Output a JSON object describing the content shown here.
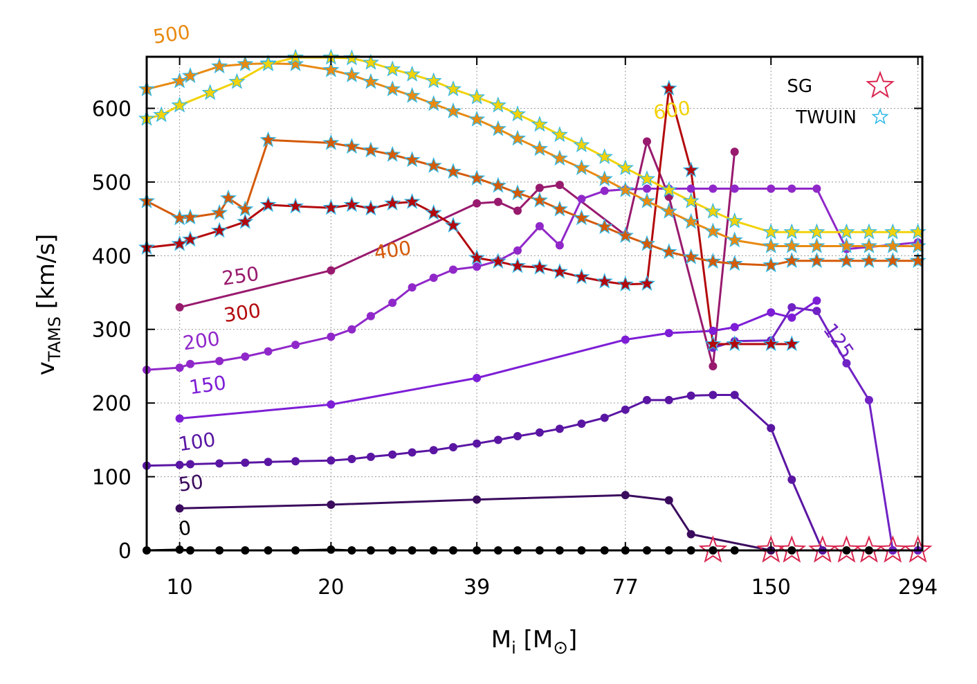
{
  "chart_data": {
    "type": "line",
    "xlabel_main": "M",
    "xlabel_sub": "i",
    "xlabel_bracket_open": " [M",
    "xlabel_sun": "⊙",
    "xlabel_bracket_close": "]",
    "ylabel_main": "v",
    "ylabel_sub": "TAMS",
    "ylabel_units": " [km/s]",
    "xscale": "log",
    "xlim": [
      8.6,
      300
    ],
    "ylim": [
      0,
      670
    ],
    "grid": true,
    "x_ticks": [
      {
        "value": 10,
        "label": "10"
      },
      {
        "value": 20,
        "label": "20"
      },
      {
        "value": 39,
        "label": "39"
      },
      {
        "value": 77,
        "label": "77"
      },
      {
        "value": 150,
        "label": "150"
      },
      {
        "value": 294,
        "label": "294"
      }
    ],
    "y_ticks": [
      {
        "value": 0,
        "label": "0"
      },
      {
        "value": 100,
        "label": "100"
      },
      {
        "value": 200,
        "label": "200"
      },
      {
        "value": 300,
        "label": "300"
      },
      {
        "value": 400,
        "label": "400"
      },
      {
        "value": 500,
        "label": "500"
      },
      {
        "value": 600,
        "label": "600"
      }
    ],
    "legend": {
      "position": "top-right",
      "entries": [
        {
          "label": "SG",
          "marker": "open-star",
          "color": "#d9264f"
        },
        {
          "label": "TWUIN",
          "marker": "small-open-star",
          "color": "#2fb8e8"
        }
      ]
    },
    "series": [
      {
        "name": "0",
        "color": "#000000",
        "x": [
          8.6,
          10,
          10.5,
          12,
          13.5,
          15,
          17,
          20,
          22,
          24,
          26.5,
          29,
          32,
          35,
          39,
          43,
          47,
          52,
          57,
          63,
          70,
          77,
          85,
          94,
          104,
          115,
          127,
          150,
          165,
          190,
          212,
          235,
          262,
          294
        ],
        "y": [
          0,
          1,
          0,
          0,
          0,
          0,
          0,
          1,
          0,
          0,
          0,
          0,
          0,
          0,
          0,
          0,
          0,
          0,
          0,
          0,
          0,
          0,
          0,
          0,
          0,
          0,
          0,
          0,
          0,
          0,
          0,
          0,
          0,
          0
        ],
        "label_at": [
          10,
          20
        ]
      },
      {
        "name": "50",
        "color": "#3b0c5e",
        "x": [
          10,
          20,
          39,
          77,
          94,
          104,
          150
        ],
        "y": [
          57,
          62,
          69,
          75,
          68,
          22,
          0
        ],
        "label_at": [
          10,
          80
        ]
      },
      {
        "name": "100",
        "color": "#5a16a3",
        "x": [
          8.6,
          10,
          10.5,
          12,
          13.5,
          15,
          17,
          20,
          22,
          24,
          26.5,
          29,
          32,
          35,
          39,
          43,
          47,
          52,
          57,
          63,
          70,
          77,
          85,
          94,
          104,
          115,
          127,
          150,
          165,
          190
        ],
        "y": [
          115,
          116,
          117,
          118,
          119,
          120,
          121,
          122,
          124,
          127,
          130,
          133,
          136,
          140,
          145,
          150,
          155,
          160,
          165,
          172,
          180,
          191,
          204,
          204,
          210,
          211,
          211,
          166,
          96,
          0
        ],
        "label_at": [
          10,
          135
        ]
      },
      {
        "name": "150",
        "color": "#7d1ed6",
        "x": [
          10,
          20,
          39,
          77,
          94,
          115,
          127,
          150,
          165,
          185
        ],
        "y": [
          179,
          198,
          234,
          286,
          295,
          298,
          303,
          323,
          316,
          339
        ],
        "label_at": [
          10.5,
          212
        ]
      },
      {
        "name": "125",
        "color": "#7022c4",
        "x": [
          115,
          127,
          150,
          165,
          185,
          212,
          235,
          262,
          294
        ],
        "y": [
          275,
          284,
          285,
          330,
          325,
          254,
          204,
          0,
          0
        ],
        "label_at": [
          190,
          300
        ],
        "label_angle": 55
      },
      {
        "name": "200",
        "color": "#9028c9",
        "x": [
          8.6,
          10,
          10.5,
          12,
          13.5,
          15,
          17,
          20,
          22,
          24,
          26.5,
          29,
          32,
          35,
          39,
          43,
          47,
          52,
          57,
          63,
          70,
          77,
          85,
          94,
          104,
          115,
          127,
          150,
          165,
          185,
          212,
          294
        ],
        "y": [
          245,
          248,
          253,
          257,
          263,
          270,
          279,
          290,
          300,
          318,
          336,
          357,
          370,
          381,
          385,
          393,
          407,
          440,
          414,
          477,
          488,
          490,
          491,
          491,
          491,
          491,
          491,
          491,
          491,
          491,
          409,
          418
        ],
        "label_at": [
          10.2,
          272
        ]
      },
      {
        "name": "250",
        "color": "#981a6e",
        "x": [
          10,
          20,
          39,
          43,
          47,
          52,
          57,
          77,
          85,
          94,
          115,
          127
        ],
        "y": [
          330,
          380,
          471,
          473,
          461,
          492,
          496,
          428,
          555,
          480,
          250,
          541
        ],
        "label_at": [
          12.2,
          360
        ]
      },
      {
        "name": "300",
        "color": "#b3080c",
        "x": [
          8.6,
          10,
          10.5,
          12,
          13.5,
          15,
          17,
          20,
          22,
          24,
          26.5,
          29,
          32,
          35,
          39,
          43,
          47,
          52,
          57,
          63,
          70,
          77,
          85,
          94,
          104,
          115,
          127,
          150,
          165
        ],
        "y": [
          411,
          416,
          422,
          434,
          446,
          469,
          467,
          465,
          469,
          464,
          471,
          473,
          458,
          441,
          397,
          392,
          386,
          384,
          378,
          371,
          365,
          361,
          362,
          627,
          516,
          280,
          280,
          280,
          280
        ],
        "label_at": [
          12.3,
          310
        ]
      },
      {
        "name": "400",
        "color": "#d45a08",
        "x": [
          8.6,
          10,
          10.5,
          12,
          12.5,
          13.5,
          15,
          20,
          22,
          24,
          26.5,
          29,
          32,
          35,
          39,
          43,
          47,
          52,
          57,
          63,
          70,
          77,
          85,
          94,
          104,
          115,
          127,
          150,
          165,
          185,
          212,
          235,
          262,
          294
        ],
        "y": [
          474,
          451,
          452,
          458,
          478,
          463,
          557,
          553,
          548,
          543,
          537,
          530,
          522,
          514,
          505,
          495,
          485,
          475,
          463,
          451,
          439,
          427,
          416,
          405,
          398,
          392,
          389,
          387,
          393,
          393,
          393,
          393,
          393,
          393
        ],
        "label_at": [
          24.5,
          395
        ]
      },
      {
        "name": "500",
        "color": "#e88a12",
        "x": [
          8.6,
          10,
          10.5,
          12,
          13.5,
          15,
          17,
          20,
          22,
          24,
          26.5,
          29,
          32,
          35,
          39,
          43,
          47,
          52,
          57,
          63,
          70,
          77,
          85,
          94,
          104,
          115,
          127,
          150,
          165,
          185,
          212,
          235,
          262,
          294
        ],
        "y": [
          626,
          637,
          644,
          657,
          660,
          661,
          660,
          652,
          645,
          636,
          626,
          617,
          606,
          596,
          585,
          572,
          559,
          545,
          532,
          519,
          504,
          489,
          474,
          460,
          446,
          433,
          421,
          413,
          413,
          413,
          413,
          413,
          413,
          413
        ],
        "label_at": [
          8.9,
          688
        ]
      },
      {
        "name": "600",
        "color": "#f2d20a",
        "x": [
          8.6,
          9.2,
          10,
          11.5,
          13,
          15,
          17,
          20,
          22,
          24,
          26.5,
          29,
          32,
          35,
          39,
          43,
          47,
          52,
          57,
          63,
          70,
          77,
          85,
          94,
          104,
          115,
          127,
          150,
          165,
          185,
          212,
          235,
          262,
          294
        ],
        "y": [
          586,
          591,
          604,
          621,
          636,
          660,
          669,
          669,
          668,
          662,
          653,
          646,
          637,
          626,
          615,
          604,
          592,
          578,
          564,
          550,
          534,
          519,
          504,
          489,
          474,
          460,
          447,
          432,
          432,
          432,
          432,
          432,
          432,
          432
        ],
        "label_at": [
          88,
          585
        ]
      }
    ],
    "sg_markers": {
      "label": "SG",
      "points": [
        [
          115,
          0
        ],
        [
          150,
          0
        ],
        [
          165,
          0
        ],
        [
          190,
          0
        ],
        [
          212,
          0
        ],
        [
          235,
          0
        ],
        [
          262,
          0
        ],
        [
          294,
          0
        ]
      ]
    }
  }
}
